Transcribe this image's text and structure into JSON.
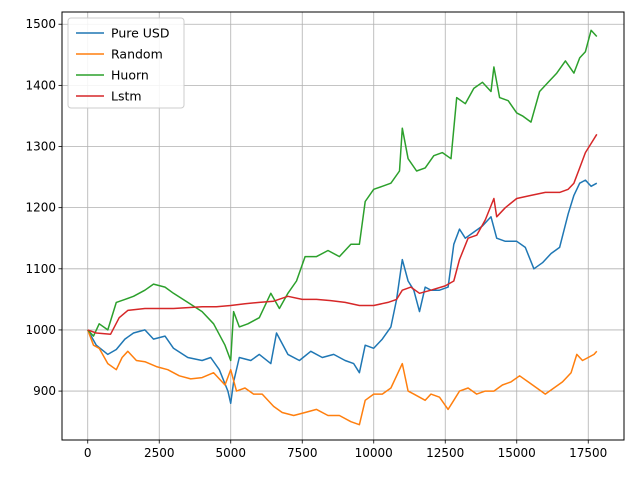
{
  "chart_data": {
    "type": "line",
    "title": "",
    "xlabel": "",
    "ylabel": "",
    "xlim": [
      -900,
      18750
    ],
    "ylim": [
      820,
      1520
    ],
    "x_ticks": [
      0,
      2500,
      5000,
      7500,
      10000,
      12500,
      15000,
      17500
    ],
    "y_ticks": [
      900,
      1000,
      1100,
      1200,
      1300,
      1400,
      1500
    ],
    "grid": true,
    "legend_position": "top-left",
    "series": [
      {
        "name": "Pure USD",
        "color": "#1f77b4",
        "x": [
          0,
          300,
          700,
          1000,
          1300,
          1600,
          2000,
          2300,
          2700,
          3000,
          3500,
          4000,
          4300,
          4600,
          4900,
          5000,
          5100,
          5300,
          5700,
          6000,
          6400,
          6600,
          7000,
          7400,
          7800,
          8200,
          8600,
          9000,
          9300,
          9500,
          9700,
          10000,
          10300,
          10600,
          10800,
          11000,
          11200,
          11400,
          11600,
          11800,
          12000,
          12300,
          12600,
          12800,
          13000,
          13200,
          13500,
          13800,
          14100,
          14300,
          14600,
          15000,
          15300,
          15600,
          15900,
          16200,
          16500,
          16800,
          17000,
          17200,
          17400,
          17600,
          17800
        ],
        "values": [
          1000,
          975,
          960,
          968,
          985,
          995,
          1000,
          985,
          990,
          970,
          955,
          950,
          955,
          935,
          900,
          880,
          915,
          955,
          950,
          960,
          945,
          995,
          960,
          950,
          965,
          955,
          960,
          950,
          945,
          930,
          975,
          970,
          985,
          1005,
          1050,
          1115,
          1080,
          1065,
          1030,
          1070,
          1065,
          1065,
          1070,
          1140,
          1165,
          1150,
          1160,
          1170,
          1185,
          1150,
          1145,
          1145,
          1135,
          1100,
          1110,
          1125,
          1135,
          1190,
          1220,
          1240,
          1245,
          1235,
          1240
        ]
      },
      {
        "name": "Random",
        "color": "#ff7f0e",
        "x": [
          0,
          200,
          400,
          700,
          1000,
          1200,
          1400,
          1700,
          2000,
          2400,
          2800,
          3200,
          3600,
          4000,
          4400,
          4800,
          5000,
          5200,
          5500,
          5800,
          6100,
          6500,
          6800,
          7200,
          7600,
          8000,
          8400,
          8800,
          9200,
          9500,
          9700,
          10000,
          10300,
          10600,
          10800,
          11000,
          11200,
          11400,
          11600,
          11800,
          12000,
          12300,
          12600,
          12800,
          13000,
          13300,
          13600,
          13900,
          14200,
          14500,
          14800,
          15100,
          15400,
          15700,
          16000,
          16300,
          16600,
          16900,
          17100,
          17300,
          17500,
          17700,
          17800
        ],
        "values": [
          1000,
          975,
          970,
          945,
          935,
          955,
          965,
          950,
          948,
          940,
          935,
          925,
          920,
          922,
          930,
          910,
          935,
          900,
          905,
          895,
          895,
          875,
          865,
          860,
          865,
          870,
          860,
          860,
          850,
          845,
          885,
          895,
          895,
          905,
          925,
          945,
          900,
          895,
          890,
          885,
          895,
          890,
          870,
          885,
          900,
          905,
          895,
          900,
          900,
          910,
          915,
          925,
          915,
          905,
          895,
          905,
          915,
          930,
          960,
          950,
          955,
          960,
          965
        ]
      },
      {
        "name": "Huorn",
        "color": "#2ca02c",
        "x": [
          0,
          200,
          400,
          700,
          1000,
          1300,
          1600,
          2000,
          2300,
          2700,
          3000,
          3500,
          4000,
          4400,
          4800,
          5000,
          5100,
          5300,
          5600,
          6000,
          6400,
          6700,
          7000,
          7300,
          7600,
          8000,
          8400,
          8800,
          9200,
          9500,
          9700,
          10000,
          10300,
          10600,
          10900,
          11000,
          11200,
          11500,
          11800,
          12100,
          12400,
          12700,
          12900,
          13200,
          13500,
          13800,
          14100,
          14200,
          14400,
          14700,
          15000,
          15200,
          15500,
          15800,
          16100,
          16400,
          16700,
          17000,
          17200,
          17400,
          17600,
          17800
        ],
        "values": [
          1000,
          990,
          1010,
          1000,
          1045,
          1050,
          1055,
          1065,
          1075,
          1070,
          1060,
          1045,
          1030,
          1010,
          975,
          950,
          1030,
          1005,
          1010,
          1020,
          1060,
          1035,
          1060,
          1080,
          1120,
          1120,
          1130,
          1120,
          1140,
          1140,
          1210,
          1230,
          1235,
          1240,
          1260,
          1330,
          1280,
          1260,
          1265,
          1285,
          1290,
          1280,
          1380,
          1370,
          1395,
          1405,
          1390,
          1430,
          1380,
          1375,
          1355,
          1350,
          1340,
          1390,
          1405,
          1420,
          1440,
          1420,
          1445,
          1455,
          1490,
          1480
        ]
      },
      {
        "name": "Lstm",
        "color": "#d62728",
        "x": [
          0,
          300,
          800,
          1100,
          1400,
          2000,
          3000,
          4000,
          4500,
          5000,
          5500,
          6000,
          6500,
          7000,
          7500,
          8000,
          8500,
          9000,
          9500,
          10000,
          10500,
          10800,
          11000,
          11300,
          11600,
          12000,
          12500,
          12800,
          13000,
          13300,
          13600,
          13900,
          14200,
          14300,
          14600,
          15000,
          15500,
          16000,
          16500,
          16800,
          17000,
          17200,
          17400,
          17600,
          17800
        ],
        "values": [
          1000,
          995,
          993,
          1020,
          1032,
          1035,
          1035,
          1038,
          1038,
          1040,
          1043,
          1045,
          1047,
          1055,
          1050,
          1050,
          1048,
          1045,
          1040,
          1040,
          1045,
          1050,
          1065,
          1070,
          1060,
          1065,
          1072,
          1080,
          1115,
          1150,
          1155,
          1180,
          1215,
          1185,
          1200,
          1215,
          1220,
          1225,
          1225,
          1230,
          1240,
          1265,
          1290,
          1305,
          1320
        ]
      }
    ]
  }
}
